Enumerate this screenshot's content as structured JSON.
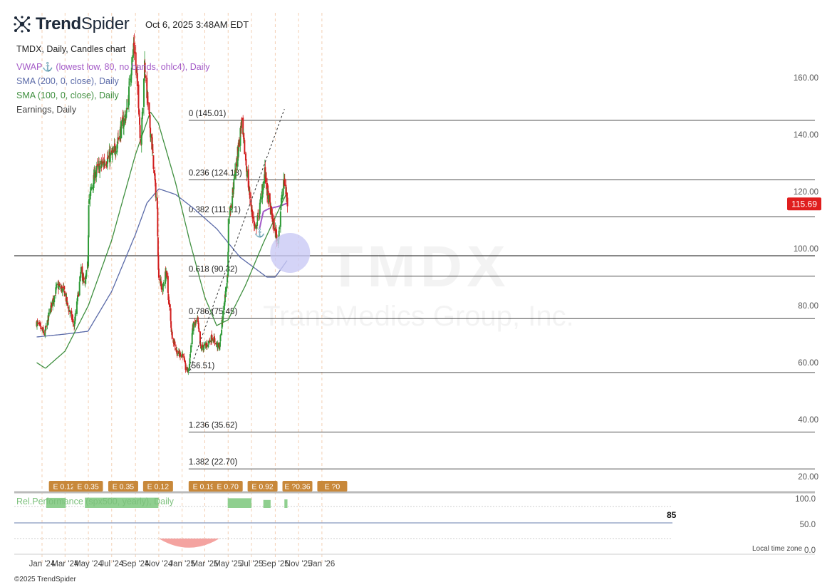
{
  "header": {
    "brand_bold": "Trend",
    "brand_light": "Spider",
    "timestamp": "Oct 6, 2025 3:48AM EDT"
  },
  "legend": {
    "title": "TMDX, Daily, Candles chart",
    "vwap": "VWAP",
    "vwap_params": " (lowest low, 80, no bands, ohlc4), Daily",
    "sma200": "SMA (200, 0, close), Daily",
    "sma100": "SMA (100, 0, close), Daily",
    "earnings": "Earnings, Daily"
  },
  "watermark": {
    "ticker": "TMDX",
    "name": "TransMedics Group, Inc."
  },
  "footer": {
    "copyright": "©2025 TrendSpider",
    "local_time": "Local time zone"
  },
  "colors": {
    "up": "#2e9a36",
    "down": "#d11f1f",
    "sma200": "#5a6aa8",
    "sma100": "#3f8f3f",
    "vwap": "#a35ac7",
    "fib": "#333333",
    "earn_bg": "#c8883a",
    "relperf": "#8fcf8f",
    "relneg": "#f4a3a0",
    "price_tag": "#e01e1e",
    "grid": "#f0c3a0",
    "highlight": "#c9c9f5"
  },
  "chart_data": {
    "type": "candlestick",
    "ticker": "TMDX",
    "interval": "Daily",
    "ylim": [
      18,
      178
    ],
    "y_ticks": [
      "20.00",
      "40.00",
      "60.00",
      "80.00",
      "100.00",
      "120.00",
      "140.00",
      "160.00"
    ],
    "x_ticks": [
      "Jan '24",
      "Mar '24",
      "May '24",
      "Jul '24",
      "Sep '24",
      "Nov '24",
      "Jan '25",
      "Mar '25",
      "May '25",
      "Jul '25",
      "Sep '25",
      "Nov '25",
      "Jan '26"
    ],
    "x_tick_dates": [
      "2024-01-01",
      "2024-03-01",
      "2024-05-01",
      "2024-07-01",
      "2024-09-01",
      "2024-11-01",
      "2025-01-01",
      "2025-03-01",
      "2025-05-01",
      "2025-07-01",
      "2025-09-01",
      "2025-11-01",
      "2026-01-01"
    ],
    "last_price": "115.69",
    "price_anchors": [
      [
        "2023-12-18",
        74
      ],
      [
        "2024-01-08",
        70
      ],
      [
        "2024-01-25",
        80
      ],
      [
        "2024-02-10",
        87
      ],
      [
        "2024-02-28",
        85
      ],
      [
        "2024-03-08",
        80
      ],
      [
        "2024-03-25",
        73
      ],
      [
        "2024-04-12",
        92
      ],
      [
        "2024-04-22",
        87
      ],
      [
        "2024-04-30",
        95
      ],
      [
        "2024-05-02",
        117
      ],
      [
        "2024-05-20",
        127
      ],
      [
        "2024-06-15",
        131
      ],
      [
        "2024-07-05",
        133
      ],
      [
        "2024-07-25",
        142
      ],
      [
        "2024-08-10",
        148
      ],
      [
        "2024-08-22",
        165
      ],
      [
        "2024-08-28",
        172
      ],
      [
        "2024-09-10",
        150
      ],
      [
        "2024-09-15",
        135
      ],
      [
        "2024-09-25",
        165
      ],
      [
        "2024-10-05",
        148
      ],
      [
        "2024-10-15",
        135
      ],
      [
        "2024-10-28",
        113
      ],
      [
        "2024-10-31",
        92
      ],
      [
        "2024-11-10",
        85
      ],
      [
        "2024-11-20",
        92
      ],
      [
        "2024-12-05",
        70
      ],
      [
        "2024-12-20",
        63
      ],
      [
        "2025-01-03",
        63
      ],
      [
        "2025-01-10",
        58
      ],
      [
        "2025-01-18",
        57
      ],
      [
        "2025-01-28",
        72
      ],
      [
        "2025-02-10",
        75
      ],
      [
        "2025-02-18",
        65
      ],
      [
        "2025-03-05",
        66
      ],
      [
        "2025-03-20",
        69
      ],
      [
        "2025-04-08",
        65
      ],
      [
        "2025-04-20",
        80
      ],
      [
        "2025-04-30",
        91
      ],
      [
        "2025-05-02",
        110
      ],
      [
        "2025-05-15",
        122
      ],
      [
        "2025-06-05",
        144
      ],
      [
        "2025-06-15",
        132
      ],
      [
        "2025-06-25",
        120
      ],
      [
        "2025-07-10",
        106
      ],
      [
        "2025-07-20",
        112
      ],
      [
        "2025-08-05",
        127
      ],
      [
        "2025-08-12",
        119
      ],
      [
        "2025-08-25",
        110
      ],
      [
        "2025-09-08",
        102
      ],
      [
        "2025-09-18",
        118
      ],
      [
        "2025-09-25",
        124
      ],
      [
        "2025-10-03",
        115.69
      ]
    ],
    "sma200_anchors": [
      [
        "2023-12-18",
        69
      ],
      [
        "2024-03-01",
        70
      ],
      [
        "2024-04-30",
        71
      ],
      [
        "2024-07-01",
        85
      ],
      [
        "2024-09-01",
        105
      ],
      [
        "2024-10-01",
        116
      ],
      [
        "2024-11-01",
        121
      ],
      [
        "2024-12-15",
        119
      ],
      [
        "2025-02-01",
        114
      ],
      [
        "2025-04-01",
        107
      ],
      [
        "2025-06-01",
        97
      ],
      [
        "2025-08-10",
        90
      ],
      [
        "2025-09-01",
        90
      ],
      [
        "2025-10-03",
        96
      ]
    ],
    "sma100_anchors": [
      [
        "2023-12-18",
        60
      ],
      [
        "2024-01-10",
        58
      ],
      [
        "2024-03-01",
        64
      ],
      [
        "2024-05-01",
        80
      ],
      [
        "2024-07-01",
        103
      ],
      [
        "2024-09-01",
        133
      ],
      [
        "2024-10-10",
        148
      ],
      [
        "2024-10-31",
        144
      ],
      [
        "2024-12-15",
        123
      ],
      [
        "2025-01-20",
        103
      ],
      [
        "2025-03-01",
        83
      ],
      [
        "2025-04-01",
        73
      ],
      [
        "2025-05-01",
        75
      ],
      [
        "2025-06-15",
        87
      ],
      [
        "2025-08-01",
        102
      ],
      [
        "2025-09-15",
        115
      ],
      [
        "2025-10-03",
        120
      ]
    ],
    "vwap_anchors": [
      [
        "2025-07-22",
        107
      ],
      [
        "2025-08-01",
        113
      ],
      [
        "2025-08-15",
        114
      ],
      [
        "2025-09-15",
        115
      ],
      [
        "2025-10-03",
        116
      ]
    ],
    "sma200_label": "SMA (200, 0, close), Daily",
    "sma100_label": "SMA (100, 0, close), Daily",
    "fibonacci": [
      {
        "label": "0 (145.01)",
        "value": 145.01
      },
      {
        "label": "0.236 (124.13)",
        "value": 124.13
      },
      {
        "label": "0.382 (111.21)",
        "value": 111.21
      },
      {
        "label": "0.618 (90.32)",
        "value": 90.32
      },
      {
        "label": "0.786 (75.45)",
        "value": 75.45
      },
      {
        "label": "(56.51)",
        "value": 56.51
      },
      {
        "label": "1.236 (35.62)",
        "value": 35.62
      },
      {
        "label": "1.382 (22.70)",
        "value": 22.7
      }
    ],
    "fib_start_date": "2025-01-18",
    "horizontal_line": 97.5,
    "trendline": [
      [
        "2025-01-20",
        57
      ],
      [
        "2025-09-25",
        149
      ]
    ],
    "earnings": [
      {
        "label": "E 0.12",
        "date": "2024-02-27"
      },
      {
        "label": "E 0.35",
        "date": "2024-04-30"
      },
      {
        "label": "E 0.35",
        "date": "2024-07-31"
      },
      {
        "label": "E 0.12",
        "date": "2024-10-30"
      },
      {
        "label": "E 0.19",
        "date": "2025-02-26"
      },
      {
        "label": "E 0.70",
        "date": "2025-04-30"
      },
      {
        "label": "E 0.92",
        "date": "2025-07-30"
      },
      {
        "label": "E ?0.36",
        "date": "2025-10-29"
      },
      {
        "label": "E ?0",
        "date": "2026-01-28"
      }
    ],
    "rel_performance": {
      "label": "Rel.Performance (spx500, yearly), Daily",
      "value": "85",
      "ticks": [
        "100.0",
        "50.0",
        "0.0"
      ],
      "positive_ranges": [
        [
          "2024-01-12",
          "2024-03-03",
          88
        ],
        [
          "2024-04-22",
          "2024-10-31",
          90
        ],
        [
          "2025-04-30",
          "2025-07-01",
          85
        ],
        [
          "2025-08-01",
          "2025-08-20",
          70
        ],
        [
          "2025-09-25",
          "2025-10-03",
          75
        ]
      ],
      "negative_range": [
        "2024-11-01",
        "2025-04-08",
        80
      ]
    }
  }
}
